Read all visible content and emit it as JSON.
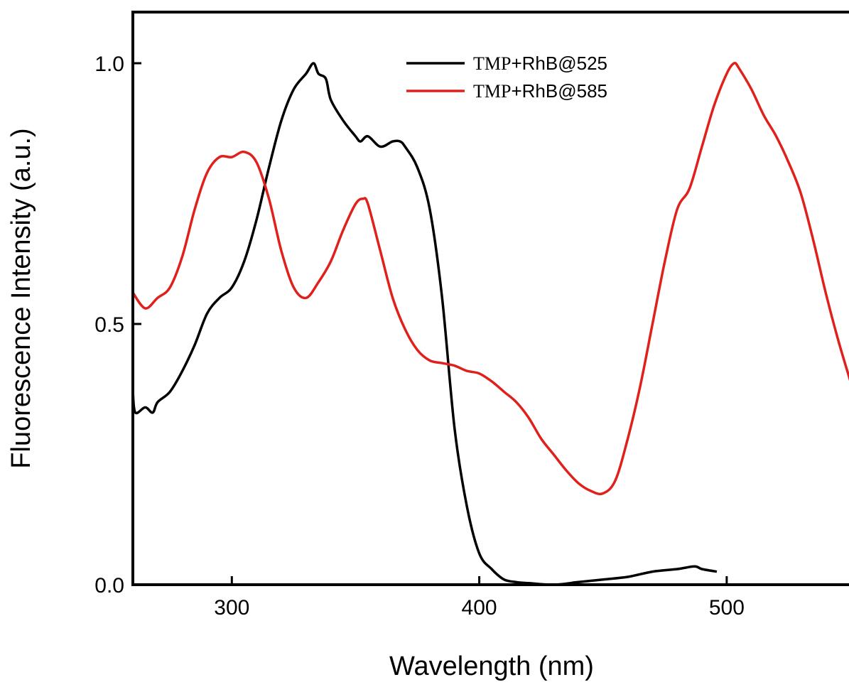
{
  "chart_data": {
    "type": "line",
    "xlabel": "Wavelength (nm)",
    "ylabel": "Fluorescence Intensity (a.u.)",
    "xlim": [
      260,
      550
    ],
    "ylim": [
      0.0,
      1.0
    ],
    "x_ticks": [
      300,
      400,
      500
    ],
    "x_tick_labels": [
      "300",
      "400",
      "500"
    ],
    "y_ticks": [
      0.0,
      0.5,
      1.0
    ],
    "y_tick_labels": [
      "0.0",
      "0.5",
      "1.0"
    ],
    "grid": false,
    "legend": "top-center",
    "series": [
      {
        "name": "TMP+RhB@525",
        "legend_prefix": "TMP",
        "legend_suffix": "+RhB@525",
        "color": "#000000",
        "x": [
          260,
          261,
          265,
          268,
          270,
          275,
          280,
          285,
          290,
          295,
          300,
          305,
          310,
          315,
          320,
          325,
          330,
          333,
          335,
          338,
          340,
          345,
          350,
          352,
          355,
          360,
          365,
          368,
          370,
          375,
          380,
          385,
          390,
          395,
          400,
          405,
          410,
          415,
          420,
          430,
          440,
          450,
          460,
          470,
          480,
          487,
          490,
          496
        ],
        "y": [
          0.37,
          0.33,
          0.34,
          0.33,
          0.35,
          0.37,
          0.41,
          0.46,
          0.52,
          0.55,
          0.57,
          0.62,
          0.7,
          0.8,
          0.89,
          0.95,
          0.98,
          1.0,
          0.98,
          0.97,
          0.93,
          0.89,
          0.86,
          0.85,
          0.86,
          0.84,
          0.85,
          0.85,
          0.84,
          0.8,
          0.72,
          0.55,
          0.3,
          0.15,
          0.06,
          0.03,
          0.01,
          0.005,
          0.003,
          0.0,
          0.005,
          0.01,
          0.015,
          0.025,
          0.03,
          0.035,
          0.03,
          0.025
        ]
      },
      {
        "name": "TMP+RhB@585",
        "legend_prefix": "TMP",
        "legend_suffix": "+RhB@585",
        "color": "#e0201b",
        "x": [
          260,
          265,
          270,
          275,
          280,
          285,
          290,
          295,
          300,
          305,
          310,
          315,
          320,
          325,
          330,
          335,
          340,
          345,
          350,
          353,
          355,
          360,
          365,
          370,
          375,
          380,
          385,
          390,
          395,
          400,
          405,
          410,
          415,
          420,
          425,
          430,
          435,
          440,
          445,
          450,
          455,
          460,
          465,
          470,
          475,
          480,
          485,
          490,
          495,
          500,
          503,
          505,
          510,
          515,
          520,
          525,
          530,
          535,
          540,
          545,
          550
        ],
        "y": [
          0.56,
          0.53,
          0.55,
          0.57,
          0.63,
          0.72,
          0.79,
          0.82,
          0.82,
          0.83,
          0.81,
          0.74,
          0.64,
          0.57,
          0.55,
          0.58,
          0.62,
          0.68,
          0.73,
          0.74,
          0.73,
          0.64,
          0.55,
          0.49,
          0.45,
          0.43,
          0.425,
          0.42,
          0.41,
          0.405,
          0.39,
          0.37,
          0.35,
          0.32,
          0.28,
          0.25,
          0.22,
          0.195,
          0.18,
          0.175,
          0.2,
          0.28,
          0.38,
          0.5,
          0.62,
          0.72,
          0.76,
          0.84,
          0.92,
          0.98,
          1.0,
          0.99,
          0.95,
          0.9,
          0.86,
          0.81,
          0.75,
          0.66,
          0.56,
          0.47,
          0.39
        ]
      }
    ]
  }
}
